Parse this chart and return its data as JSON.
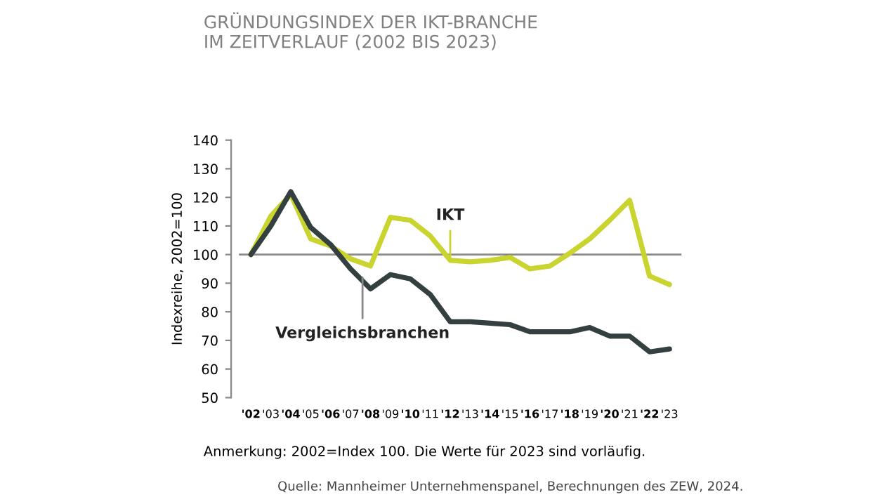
{
  "chart_data": {
    "type": "line",
    "title": "GRÜNDUNGSINDEX DER IKT-BRANCHE\nIM ZEITVERLAUF (2002 BIS 2023)",
    "ylabel": "Indexreihe, 2002=100",
    "categories": [
      "'02",
      "'03",
      "'04",
      "'05",
      "'06",
      "'07",
      "'08",
      "'09",
      "'10",
      "'11",
      "'12",
      "'13",
      "'14",
      "'15",
      "'16",
      "'17",
      "'18",
      "'19",
      "'20",
      "'21",
      "'22",
      "'23"
    ],
    "series": [
      {
        "name": "IKT",
        "color": "#c9d42e",
        "values": [
          100,
          113.5,
          121,
          105.5,
          103,
          98.5,
          96,
          113,
          112,
          106.5,
          98,
          97.5,
          98,
          99,
          95,
          96,
          100.5,
          105.5,
          112,
          119,
          92.5,
          89.5
        ]
      },
      {
        "name": "Vergleichsbranchen",
        "color": "#33403f",
        "values": [
          100,
          110,
          122,
          109.5,
          103.5,
          95,
          88,
          93,
          91.5,
          86,
          76.5,
          76.5,
          76,
          75.5,
          73,
          73,
          73,
          74.5,
          71.5,
          71.5,
          66,
          67
        ]
      }
    ],
    "ylim": [
      50,
      140
    ],
    "yticks": [
      50,
      60,
      70,
      80,
      90,
      100,
      110,
      120,
      130,
      140
    ],
    "grid": false,
    "legend": false,
    "ref_lines": [
      {
        "axis": "y",
        "value": 100,
        "color": "#8a8a8a"
      }
    ],
    "annotations": [
      "Anmerkung: 2002=Index 100. Die Werte für 2023 sind vorläufig.",
      "Quelle: Mannheimer Unternehmenspanel, Berechnungen des ZEW, 2024."
    ]
  }
}
